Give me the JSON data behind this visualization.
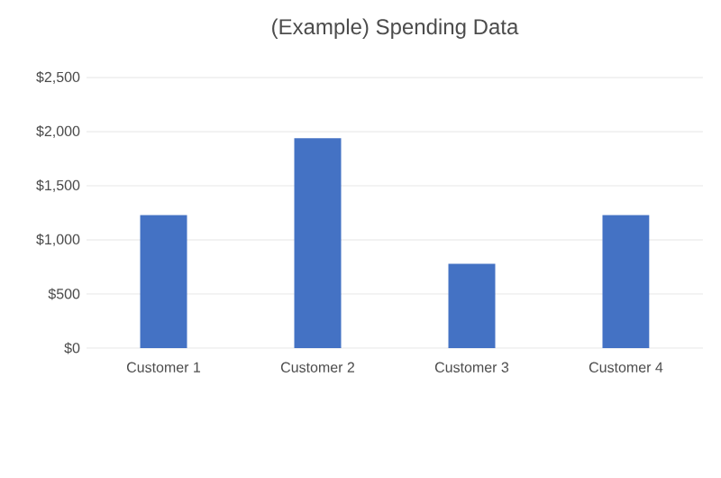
{
  "chart_data": {
    "type": "bar",
    "title": "(Example) Spending Data",
    "categories": [
      "Customer 1",
      "Customer 2",
      "Customer 3",
      "Customer 4"
    ],
    "values": [
      1230,
      1940,
      780,
      1230
    ],
    "color": "#4472c4",
    "ylim": [
      0,
      2500
    ],
    "yticks": [
      {
        "value": 0,
        "label": "$0"
      },
      {
        "value": 500,
        "label": "$500"
      },
      {
        "value": 1000,
        "label": "$1,000"
      },
      {
        "value": 1500,
        "label": "$1,500"
      },
      {
        "value": 2000,
        "label": "$2,000"
      },
      {
        "value": 2500,
        "label": "$2,500"
      }
    ],
    "grid": "y"
  }
}
